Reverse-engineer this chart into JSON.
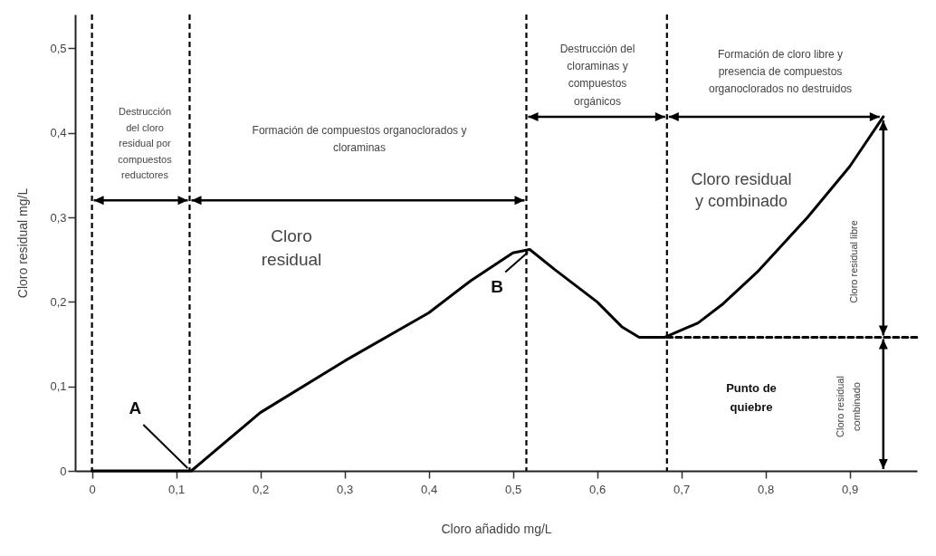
{
  "chart_data": {
    "type": "line",
    "xlabel": "Cloro añadido mg/L",
    "ylabel": "Cloro residual  mg/L",
    "xlim": [
      -0.02,
      0.98
    ],
    "ylim": [
      0,
      0.54
    ],
    "xticks": [
      {
        "value": 0,
        "label": "0"
      },
      {
        "value": 0.1,
        "label": "0,1"
      },
      {
        "value": 0.2,
        "label": "0,2"
      },
      {
        "value": 0.3,
        "label": "0,3"
      },
      {
        "value": 0.4,
        "label": "0,4"
      },
      {
        "value": 0.5,
        "label": "0,5"
      },
      {
        "value": 0.6,
        "label": "0,6"
      },
      {
        "value": 0.7,
        "label": "0,7"
      },
      {
        "value": 0.8,
        "label": "0,8"
      },
      {
        "value": 0.9,
        "label": "0,9"
      }
    ],
    "yticks": [
      {
        "value": 0,
        "label": "0"
      },
      {
        "value": 0.1,
        "label": "0,1"
      },
      {
        "value": 0.2,
        "label": "0,2"
      },
      {
        "value": 0.3,
        "label": "0,3"
      },
      {
        "value": 0.4,
        "label": "0,4"
      },
      {
        "value": 0.5,
        "label": "0,5"
      }
    ],
    "series": [
      {
        "color": "#000000",
        "line_style": "solid",
        "x": [
          0,
          0.118,
          0.2,
          0.3,
          0.4,
          0.45,
          0.5,
          0.52,
          0.55,
          0.6,
          0.63,
          0.65,
          0.68,
          0.72,
          0.75,
          0.79,
          0.85,
          0.9,
          0.94
        ],
        "values": [
          0,
          0,
          0.069,
          0.13,
          0.187,
          0.225,
          0.258,
          0.262,
          0.238,
          0.2,
          0.17,
          0.158,
          0.158,
          0.175,
          0.198,
          0.235,
          0.3,
          0.36,
          0.419
        ]
      },
      {
        "color": "#000000",
        "line_style": "dashed",
        "x": [
          0.683,
          0.98
        ],
        "values": [
          0.158,
          0.158
        ]
      }
    ],
    "ref_lines": [
      {
        "axis": "x",
        "value": 0,
        "color": "#000000",
        "line_style": "dashed"
      },
      {
        "axis": "x",
        "value": 0.116,
        "color": "#000000",
        "line_style": "dashed"
      },
      {
        "axis": "x",
        "value": 0.516,
        "color": "#000000",
        "line_style": "dashed"
      },
      {
        "axis": "x",
        "value": 0.683,
        "color": "#000000",
        "line_style": "dashed"
      }
    ],
    "annotations": [
      "Destrucción\ndel cloro\nresidual por\ncompuestos\nreductores",
      "Formación de compuestos organoclorados  y\ncloraminas",
      "Destrucción del\ncloraminas y\ncompuestos\norgánicos",
      "Formación de cloro libre y\npresencia de compuestos\norganoclorados no destruidos",
      "Cloro\nresidual",
      "Cloro residual\ny combinado",
      {
        "text": "A",
        "x": 0.118,
        "y": 0
      },
      {
        "text": "B",
        "x": 0.52,
        "y": 0.262
      },
      "Punto de\nquiebre",
      "Cloro residual libre",
      "Cloro residual\ncombinado"
    ]
  }
}
